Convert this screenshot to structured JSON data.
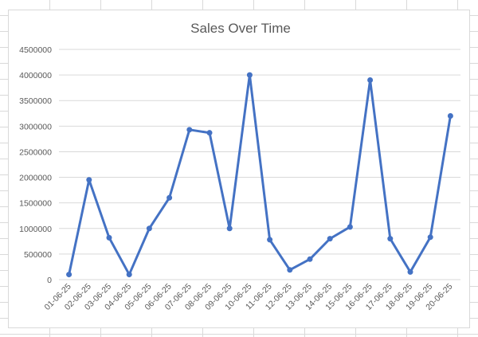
{
  "chart_data": {
    "type": "line",
    "title": "Sales Over Time",
    "xlabel": "",
    "ylabel": "",
    "ylim": [
      0,
      4500000
    ],
    "yticks": [
      "0",
      "500000",
      "1000000",
      "1500000",
      "2000000",
      "2500000",
      "3000000",
      "3500000",
      "4000000",
      "4500000"
    ],
    "grid": true,
    "legend": "none",
    "categories": [
      "01-06-25",
      "02-06-25",
      "03-06-25",
      "04-06-25",
      "05-06-25",
      "06-06-25",
      "07-06-25",
      "08-06-25",
      "09-06-25",
      "10-06-25",
      "11-06-25",
      "12-06-25",
      "13-06-25",
      "14-06-25",
      "15-06-25",
      "16-06-25",
      "17-06-25",
      "18-06-25",
      "19-06-25",
      "20-06-25"
    ],
    "series": [
      {
        "values": [
          100000,
          1950000,
          820000,
          100000,
          1000000,
          1600000,
          2930000,
          2870000,
          1000000,
          4000000,
          780000,
          190000,
          400000,
          800000,
          1030000,
          3900000,
          800000,
          150000,
          830000,
          3200000
        ],
        "color": "#4472c4"
      }
    ],
    "colors": {
      "line": "#4472c4",
      "gridline": "#d9d9d9",
      "text": "#595959"
    }
  }
}
